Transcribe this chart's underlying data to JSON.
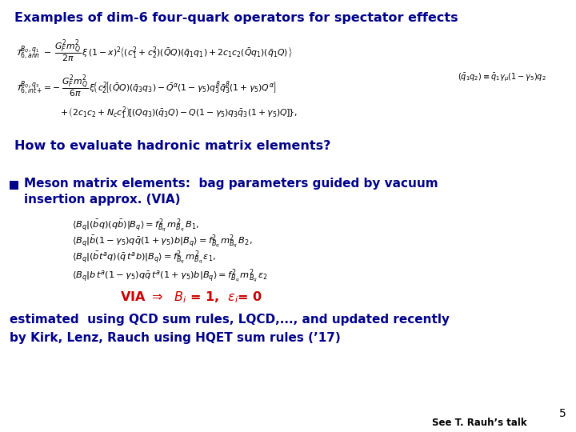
{
  "bg_color": "#ffffff",
  "title": "Examples of dim-6 four-quark operators for spectator effects",
  "title_color": "#00008B",
  "title_fontsize": 11.5,
  "section": "How to evaluate hadronic matrix elements?",
  "section_color": "#00008B",
  "section_fontsize": 11.5,
  "bullet_color": "#00008B",
  "bullet_fontsize": 11.0,
  "via_color": "#CC0000",
  "via_fontsize": 11.5,
  "footer_color": "#00008B",
  "footer_fontsize": 11.0,
  "page_num": "5",
  "rauh_text": "See T. Rauh’s talk",
  "eq_fontsize": 7.8,
  "matrix_eq_fontsize": 8.2,
  "rhs_fontsize": 7.0
}
